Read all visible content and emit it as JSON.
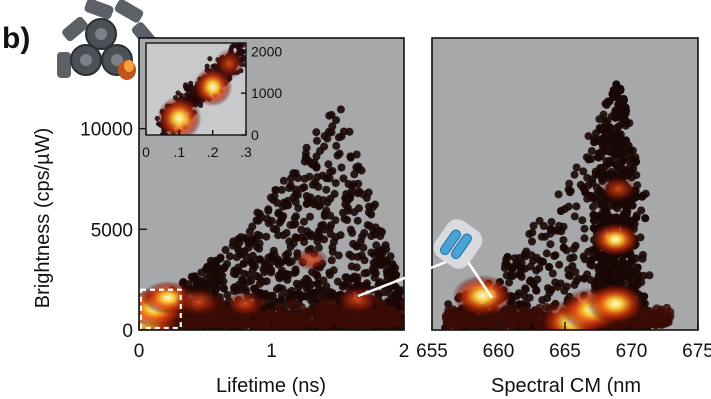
{
  "figure": {
    "panel_letter": "b)"
  },
  "chart_data": [
    {
      "type": "scatter",
      "panel": "left",
      "xlabel": "Lifetime (ns)",
      "ylabel": "Brightness (cps/µW)",
      "xlim": [
        0,
        2
      ],
      "ylim": [
        0,
        14500
      ],
      "x_ticks": [
        0,
        1,
        2
      ],
      "x_tick_labels": [
        "0",
        "1",
        "2"
      ],
      "y_ticks": [
        0,
        5000,
        10000
      ],
      "y_tick_labels": [
        "0",
        "5000",
        "10000"
      ],
      "grid": false,
      "density_clusters": [
        {
          "x": 0.05,
          "y": 500,
          "weight": 1.0
        },
        {
          "x": 0.12,
          "y": 1100,
          "weight": 0.85
        },
        {
          "x": 0.22,
          "y": 1600,
          "weight": 0.6
        },
        {
          "x": 0.45,
          "y": 1400,
          "weight": 0.45
        },
        {
          "x": 0.8,
          "y": 1300,
          "weight": 0.35
        },
        {
          "x": 1.65,
          "y": 1500,
          "weight": 0.4
        },
        {
          "x": 1.3,
          "y": 3500,
          "weight": 0.2
        }
      ],
      "scatter_envelope": {
        "x_range": [
          0,
          2
        ],
        "peak_x": 1.5,
        "peak_y": 11500
      },
      "highlight_box": {
        "x": [
          0,
          0.3
        ],
        "y": [
          0,
          2000
        ]
      },
      "inset": {
        "xlim": [
          0,
          0.3
        ],
        "ylim": [
          0,
          2200
        ],
        "x_ticks": [
          0,
          0.1,
          0.2,
          0.3
        ],
        "x_tick_labels": [
          "0",
          ".1",
          ".2",
          ".3"
        ],
        "y_ticks": [
          0,
          1000,
          2000
        ],
        "y_tick_labels": [
          "0",
          "1000",
          "2000"
        ],
        "density_clusters": [
          {
            "x": 0.1,
            "y": 400,
            "weight": 1.0
          },
          {
            "x": 0.2,
            "y": 1150,
            "weight": 0.8
          },
          {
            "x": 0.25,
            "y": 1700,
            "weight": 0.5
          }
        ]
      }
    },
    {
      "type": "scatter",
      "panel": "right",
      "xlabel": "Spectral CM (nm",
      "ylabel": "",
      "xlim": [
        655,
        675
      ],
      "ylim": [
        0,
        14500
      ],
      "x_ticks": [
        655,
        660,
        665,
        670,
        675
      ],
      "x_tick_labels": [
        "655",
        "660",
        "665",
        "670",
        "675"
      ],
      "grid": false,
      "density_clusters": [
        {
          "x": 658.8,
          "y": 1700,
          "weight": 0.9
        },
        {
          "x": 665.5,
          "y": 400,
          "weight": 0.95
        },
        {
          "x": 667,
          "y": 1000,
          "weight": 1.0
        },
        {
          "x": 668.8,
          "y": 1300,
          "weight": 0.85
        },
        {
          "x": 668.8,
          "y": 4500,
          "weight": 0.6
        },
        {
          "x": 669,
          "y": 7000,
          "weight": 0.35
        }
      ],
      "scatter_envelope": {
        "x_range": [
          656,
          673.5
        ],
        "peak_x": 669,
        "peak_y": 12500
      }
    }
  ],
  "colors": {
    "plot_background": "#a7a8aa",
    "point_dark": "#1a0806",
    "density_low": "#6e1208",
    "density_mid": "#d2280c",
    "density_high": "#ffd23a",
    "density_core": "#fffde0",
    "axis": "#111111",
    "molecule_icon": "#4aa3d6"
  },
  "icons": [
    "nanostructure-cartoon-icon",
    "molecule-icon"
  ]
}
